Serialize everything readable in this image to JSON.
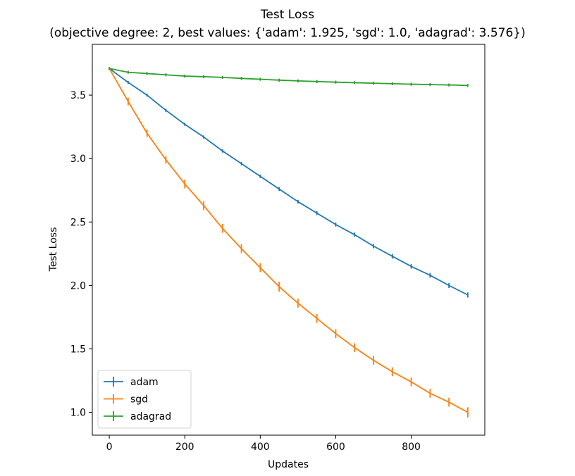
{
  "chart_data": {
    "type": "line",
    "title": "Test Loss",
    "subtitle": "(objective degree: 2,  best values: {'adam': 1.925, 'sgd': 1.0, 'adagrad': 3.576})",
    "xlabel": "Updates",
    "ylabel": "Test Loss",
    "xlim": [
      -45,
      995
    ],
    "ylim": [
      0.82,
      3.9
    ],
    "xticks": [
      0,
      200,
      400,
      600,
      800
    ],
    "xtick_labels": [
      "0",
      "200",
      "400",
      "600",
      "800"
    ],
    "yticks": [
      1.0,
      1.5,
      2.0,
      2.5,
      3.0,
      3.5
    ],
    "ytick_labels": [
      "1.0",
      "1.5",
      "2.0",
      "2.5",
      "3.0",
      "3.5"
    ],
    "grid": false,
    "legend_position": "lower-left",
    "x": [
      0,
      50,
      100,
      150,
      200,
      250,
      300,
      350,
      400,
      450,
      500,
      550,
      600,
      650,
      700,
      750,
      800,
      850,
      900,
      950
    ],
    "series": [
      {
        "name": "adam",
        "color": "#1f77b4",
        "values": [
          3.71,
          3.6,
          3.5,
          3.38,
          3.27,
          3.17,
          3.06,
          2.96,
          2.86,
          2.76,
          2.66,
          2.57,
          2.48,
          2.4,
          2.31,
          2.23,
          2.15,
          2.08,
          2.0,
          1.925
        ],
        "errors": [
          0.0,
          0.01,
          0.01,
          0.01,
          0.012,
          0.012,
          0.013,
          0.013,
          0.014,
          0.015,
          0.015,
          0.016,
          0.016,
          0.017,
          0.017,
          0.018,
          0.018,
          0.019,
          0.02,
          0.02
        ]
      },
      {
        "name": "sgd",
        "color": "#ff7f0e",
        "values": [
          3.71,
          3.45,
          3.2,
          2.99,
          2.8,
          2.63,
          2.45,
          2.29,
          2.14,
          1.99,
          1.86,
          1.74,
          1.62,
          1.51,
          1.41,
          1.32,
          1.24,
          1.15,
          1.08,
          1.0
        ],
        "errors": [
          0.0,
          0.03,
          0.03,
          0.03,
          0.035,
          0.035,
          0.035,
          0.035,
          0.035,
          0.04,
          0.035,
          0.035,
          0.035,
          0.035,
          0.035,
          0.035,
          0.035,
          0.035,
          0.035,
          0.04
        ]
      },
      {
        "name": "adagrad",
        "color": "#2ca02c",
        "values": [
          3.71,
          3.68,
          3.67,
          3.66,
          3.65,
          3.645,
          3.64,
          3.632,
          3.625,
          3.618,
          3.612,
          3.607,
          3.602,
          3.598,
          3.594,
          3.59,
          3.586,
          3.583,
          3.58,
          3.576
        ],
        "errors": [
          0.0,
          0.002,
          0.002,
          0.002,
          0.002,
          0.002,
          0.002,
          0.002,
          0.002,
          0.002,
          0.002,
          0.002,
          0.002,
          0.002,
          0.002,
          0.002,
          0.002,
          0.002,
          0.002,
          0.002
        ]
      }
    ]
  }
}
